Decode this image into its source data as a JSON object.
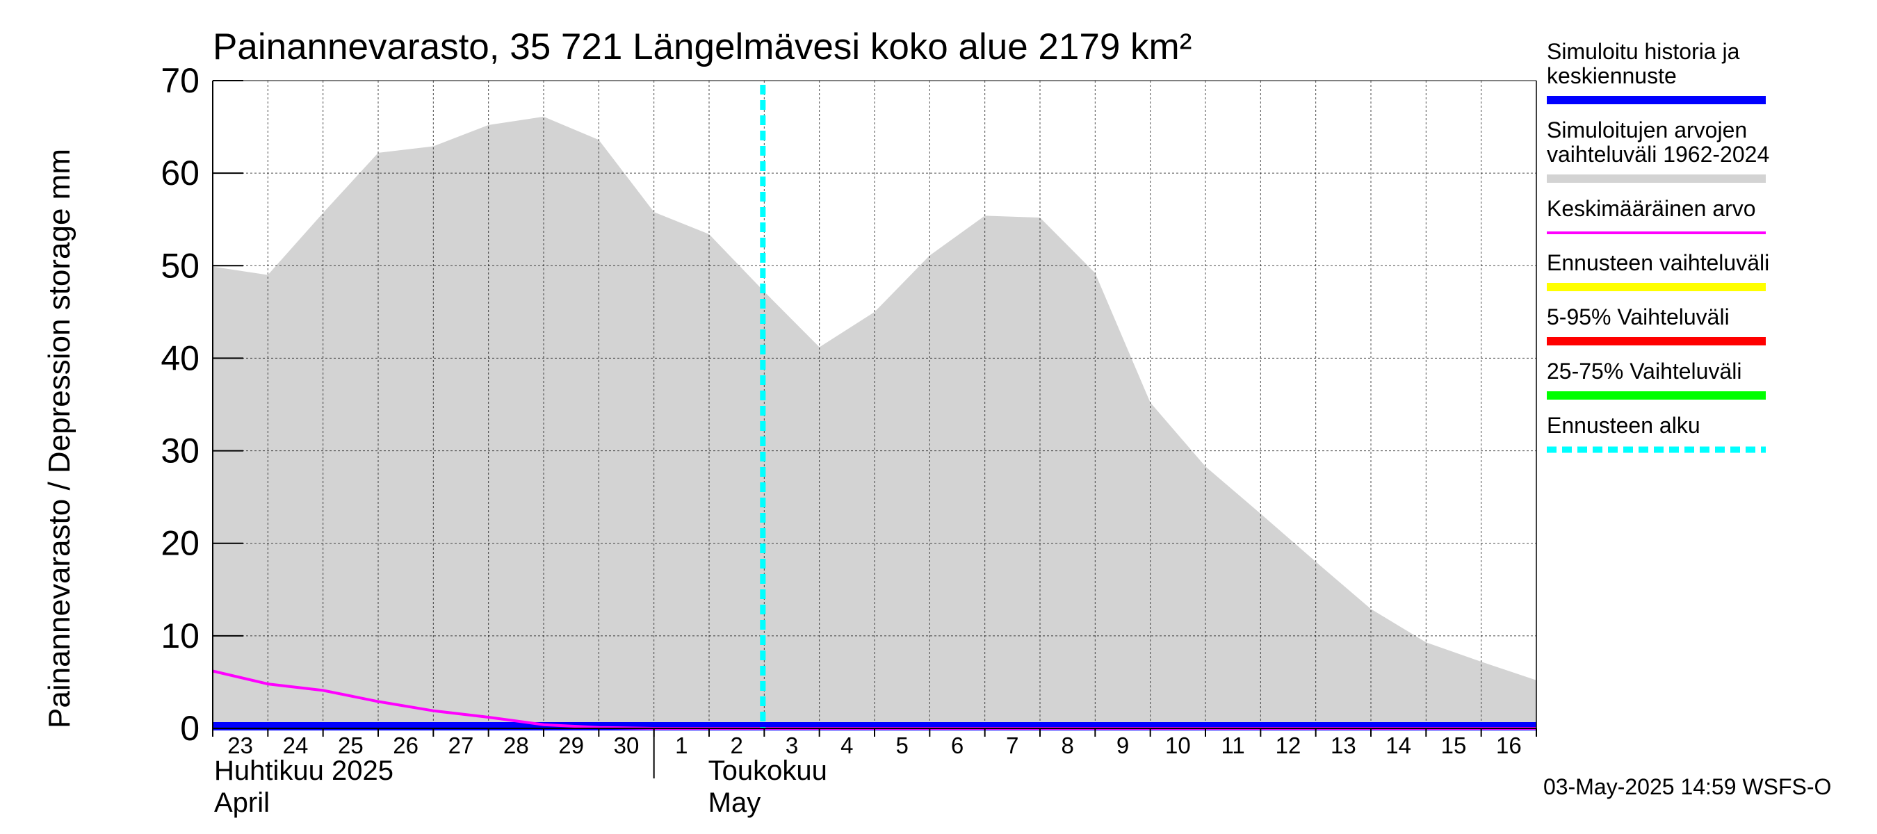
{
  "chart_data": {
    "type": "area",
    "title": "Painannevarasto, 35 721 Längelmävesi koko alue 2179 km²",
    "ylabel": "Painannevarasto / Depression storage    mm",
    "ylim": [
      0,
      70
    ],
    "yticks": [
      0,
      10,
      20,
      30,
      40,
      50,
      60,
      70
    ],
    "xlim": [
      "2025-04-23",
      "2025-05-17"
    ],
    "x_tick_labels": [
      "23",
      "24",
      "25",
      "26",
      "27",
      "28",
      "29",
      "30",
      "1",
      "2",
      "3",
      "4",
      "5",
      "6",
      "7",
      "8",
      "9",
      "10",
      "11",
      "12",
      "13",
      "14",
      "15",
      "16"
    ],
    "months": [
      {
        "label_fi": "Huhtikuu  2025",
        "label_en": "April"
      },
      {
        "label_fi": "Toukokuu",
        "label_en": "May"
      }
    ],
    "grid": true,
    "legend_placement": "right",
    "forecast_start": "2025-05-03",
    "series": [
      {
        "name": "Simuloitu historia ja keskiennuste",
        "style": "line",
        "color": "#0000ff",
        "x": [
          "2025-04-23",
          "2025-04-24",
          "2025-04-25",
          "2025-04-26",
          "2025-04-27",
          "2025-04-28",
          "2025-04-29",
          "2025-04-30",
          "2025-05-01",
          "2025-05-02",
          "2025-05-03",
          "2025-05-04",
          "2025-05-05",
          "2025-05-06",
          "2025-05-07",
          "2025-05-08",
          "2025-05-09",
          "2025-05-10",
          "2025-05-11",
          "2025-05-12",
          "2025-05-13",
          "2025-05-14",
          "2025-05-15",
          "2025-05-16",
          "2025-05-17"
        ],
        "values": [
          0,
          0,
          0,
          0,
          0,
          0,
          0,
          0,
          0,
          0,
          0,
          0,
          0,
          0,
          0,
          0,
          0,
          0,
          0,
          0,
          0,
          0,
          0,
          0,
          0
        ]
      },
      {
        "name": "Simuloitujen arvojen vaihteluväli 1962-2024",
        "style": "band",
        "color": "#d3d3d3",
        "x": [
          "2025-04-23",
          "2025-04-24",
          "2025-04-25",
          "2025-04-26",
          "2025-04-27",
          "2025-04-28",
          "2025-04-29",
          "2025-04-30",
          "2025-05-01",
          "2025-05-02",
          "2025-05-03",
          "2025-05-04",
          "2025-05-05",
          "2025-05-06",
          "2025-05-07",
          "2025-05-08",
          "2025-05-09",
          "2025-05-10",
          "2025-05-11",
          "2025-05-12",
          "2025-05-13",
          "2025-05-14",
          "2025-05-15",
          "2025-05-16",
          "2025-05-17"
        ],
        "upper": [
          49.9,
          49.0,
          55.7,
          62.2,
          62.9,
          65.2,
          66.1,
          63.6,
          55.8,
          53.4,
          47.2,
          41.2,
          45.0,
          51.1,
          55.4,
          55.2,
          49.2,
          35.2,
          28.3,
          23.2,
          18.0,
          12.9,
          9.3,
          7.2,
          5.2
        ],
        "lower": [
          0,
          0,
          0,
          0,
          0,
          0,
          0,
          0,
          0,
          0,
          0,
          0,
          0,
          0,
          0,
          0,
          0,
          0,
          0,
          0,
          0,
          0,
          0,
          0,
          0
        ]
      },
      {
        "name": "Keskimääräinen arvo",
        "style": "line",
        "color": "#ff00ff",
        "x": [
          "2025-04-23",
          "2025-04-24",
          "2025-04-25",
          "2025-04-26",
          "2025-04-27",
          "2025-04-28",
          "2025-04-29",
          "2025-04-30",
          "2025-05-01",
          "2025-05-02",
          "2025-05-03",
          "2025-05-04",
          "2025-05-05",
          "2025-05-06",
          "2025-05-07",
          "2025-05-08",
          "2025-05-09",
          "2025-05-10",
          "2025-05-11",
          "2025-05-12",
          "2025-05-13",
          "2025-05-14",
          "2025-05-15",
          "2025-05-16",
          "2025-05-17"
        ],
        "values": [
          6.2,
          4.8,
          4.1,
          2.9,
          1.9,
          1.2,
          0.4,
          0.1,
          0,
          0,
          0,
          0,
          0,
          0,
          0,
          0,
          0,
          0,
          0,
          0,
          0,
          0,
          0,
          0,
          0
        ]
      },
      {
        "name": "Ennusteen vaihteluväli",
        "style": "legend-only",
        "color": "#ffff00"
      },
      {
        "name": "5-95% Vaihteluväli",
        "style": "legend-only",
        "color": "#ff0000"
      },
      {
        "name": "25-75% Vaihteluväli",
        "style": "legend-only",
        "color": "#00ff00"
      },
      {
        "name": "Ennusteen alku",
        "style": "vline-dashed",
        "color": "#00ffff"
      }
    ],
    "legend": [
      {
        "lines": [
          "Simuloitu historia ja",
          "keskiennuste"
        ],
        "color": "#0000ff",
        "style": "solid"
      },
      {
        "lines": [
          "Simuloitujen arvojen",
          "vaihteluväli 1962-2024"
        ],
        "color": "#d3d3d3",
        "style": "solid"
      },
      {
        "lines": [
          "Keskimääräinen arvo"
        ],
        "color": "#ff00ff",
        "style": "thin"
      },
      {
        "lines": [
          "Ennusteen vaihteluväli"
        ],
        "color": "#ffff00",
        "style": "solid"
      },
      {
        "lines": [
          "5-95% Vaihteluväli"
        ],
        "color": "#ff0000",
        "style": "solid"
      },
      {
        "lines": [
          "25-75% Vaihteluväli"
        ],
        "color": "#00ff00",
        "style": "solid"
      },
      {
        "lines": [
          "Ennusteen alku"
        ],
        "color": "#00ffff",
        "style": "dashed"
      }
    ],
    "footer": "03-May-2025 14:59 WSFS-O"
  }
}
